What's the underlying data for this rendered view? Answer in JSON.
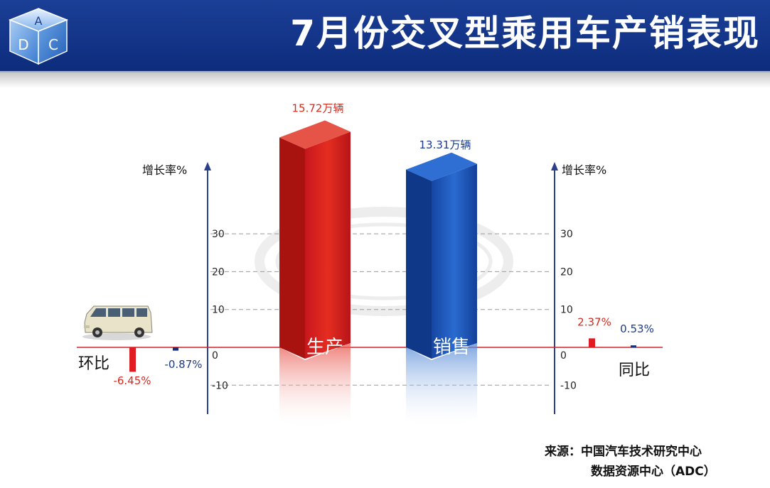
{
  "header": {
    "title": "7月份交叉型乘用车产销表现",
    "logo_letters": [
      "A",
      "D",
      "C"
    ]
  },
  "chart_data": {
    "type": "bar",
    "panels": [
      {
        "name": "环比",
        "y_axis_label": "增长率%",
        "ylim": [
          -15,
          40
        ],
        "yticks": [
          -10,
          0,
          10,
          20,
          30
        ],
        "series": [
          {
            "name": "生产",
            "value": -6.45,
            "label": "-6.45%",
            "color": "#e01b22"
          },
          {
            "name": "销售",
            "value": -0.87,
            "label": "-0.87%",
            "color": "#1a2f7a"
          }
        ]
      },
      {
        "name": "同比",
        "y_axis_label": "增长率%",
        "ylim": [
          -15,
          40
        ],
        "yticks": [
          -10,
          0,
          10,
          20,
          30
        ],
        "series": [
          {
            "name": "生产",
            "value": 2.37,
            "label": "2.37%",
            "color": "#e01b22"
          },
          {
            "name": "销售",
            "value": 0.53,
            "label": "0.53%",
            "color": "#1a2f7a"
          }
        ]
      }
    ],
    "volumes": [
      {
        "name": "生产",
        "value": 15.72,
        "unit": "万辆",
        "label": "15.72万辆",
        "color": "#d9261c"
      },
      {
        "name": "销售",
        "value": 13.31,
        "unit": "万辆",
        "label": "13.31万辆",
        "color": "#1e56b5"
      }
    ],
    "grid": true
  },
  "source": {
    "line1": "来源：中国汽车技术研究中心",
    "line2": "数据资源中心（ADC）"
  }
}
